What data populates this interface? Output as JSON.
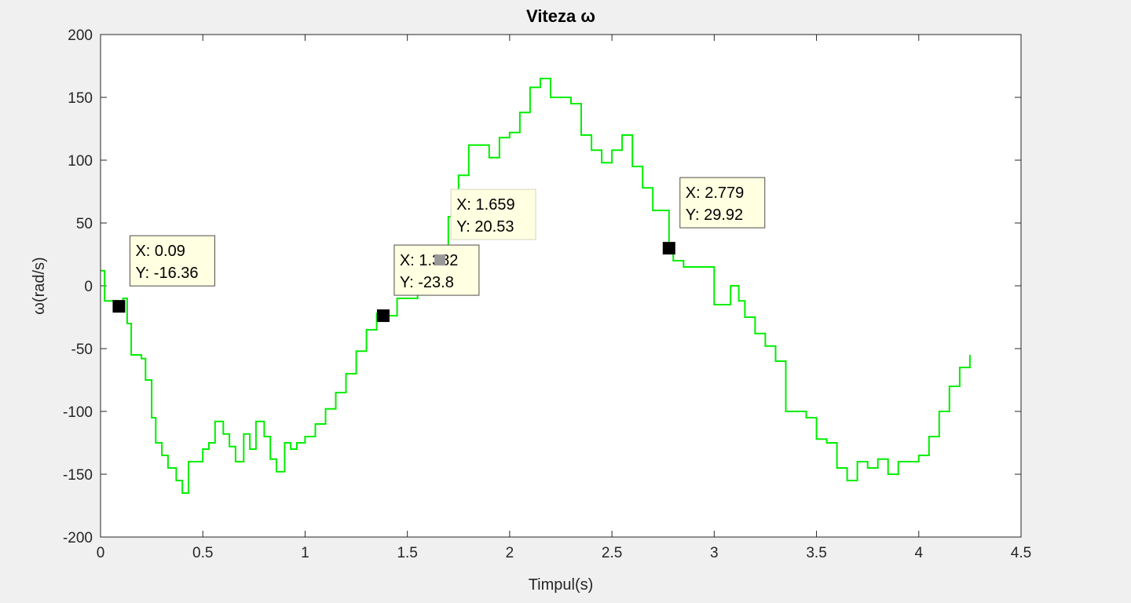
{
  "chart_data": {
    "type": "line",
    "title": "Viteza ω",
    "xlabel": "Timpul(s)",
    "ylabel": "ω(rad/s)",
    "xlim": [
      0,
      4.5
    ],
    "ylim": [
      -200,
      200
    ],
    "xticks": [
      0,
      0.5,
      1,
      1.5,
      2,
      2.5,
      3,
      3.5,
      4,
      4.5
    ],
    "xtick_labels": [
      "0",
      "0.5",
      "1",
      "1.5",
      "2",
      "2.5",
      "3",
      "3.5",
      "4",
      "4.5"
    ],
    "yticks": [
      200,
      150,
      100,
      50,
      0,
      -50,
      -100,
      -150,
      -200
    ],
    "ytick_labels": [
      "200",
      "150",
      "100",
      "50",
      "0",
      "-50",
      "-100",
      "-150",
      "-200"
    ],
    "grid": false,
    "legend": "none",
    "colors": {
      "line": "#00ee00",
      "axes_bg": "#ffffff",
      "figure_bg": "#f0f0f0",
      "tip_bg": "#ffffe1",
      "marker": "#000000",
      "marker_inactive": "#999999"
    },
    "series": [
      {
        "x": [
          0,
          0.02,
          0.05,
          0.09,
          0.11,
          0.13,
          0.15,
          0.2,
          0.22,
          0.25,
          0.27,
          0.3,
          0.33,
          0.37,
          0.4,
          0.43,
          0.46,
          0.5,
          0.53,
          0.56,
          0.6,
          0.63,
          0.66,
          0.7,
          0.73,
          0.76,
          0.8,
          0.83,
          0.86,
          0.9,
          0.93,
          0.96,
          1.0,
          1.05,
          1.1,
          1.15,
          1.2,
          1.25,
          1.3,
          1.35,
          1.38,
          1.45,
          1.55,
          1.659,
          1.7,
          1.75,
          1.8,
          1.85,
          1.9,
          1.95,
          2.0,
          2.05,
          2.1,
          2.15,
          2.2,
          2.25,
          2.3,
          2.35,
          2.4,
          2.45,
          2.5,
          2.55,
          2.6,
          2.65,
          2.7,
          2.779,
          2.8,
          2.85,
          2.9,
          2.95,
          3.0,
          3.05,
          3.08,
          3.12,
          3.15,
          3.2,
          3.25,
          3.3,
          3.35,
          3.4,
          3.45,
          3.5,
          3.55,
          3.6,
          3.65,
          3.7,
          3.75,
          3.8,
          3.85,
          3.9,
          3.95,
          4.0,
          4.05,
          4.1,
          4.15,
          4.2,
          4.25
        ],
        "y": [
          12,
          -12,
          -12,
          -16.36,
          -10,
          -30,
          -55,
          -58,
          -75,
          -105,
          -125,
          -135,
          -145,
          -155,
          -165,
          -140,
          -140,
          -130,
          -125,
          -108,
          -118,
          -128,
          -140,
          -118,
          -130,
          -108,
          -120,
          -138,
          -148,
          -125,
          -130,
          -125,
          -120,
          -110,
          -98,
          -85,
          -70,
          -52,
          -35,
          -22,
          -23.8,
          -10,
          5,
          20.53,
          55,
          88,
          112,
          112,
          102,
          118,
          122,
          138,
          158,
          165,
          150,
          150,
          145,
          120,
          108,
          98,
          108,
          120,
          95,
          78,
          60,
          29.92,
          20,
          15,
          15,
          15,
          -15,
          -15,
          0,
          -12,
          -25,
          -38,
          -48,
          -60,
          -100,
          -100,
          -105,
          -122,
          -125,
          -145,
          -155,
          -140,
          -145,
          -138,
          -150,
          -140,
          -140,
          -135,
          -120,
          -100,
          -80,
          -65,
          -55
        ]
      }
    ],
    "datatips": [
      {
        "x": 0.09,
        "y": -16.36,
        "label_x": "X: 0.09",
        "label_y": "Y: -16.36",
        "active": true
      },
      {
        "x": 1.382,
        "y": -23.8,
        "label_x": "X: 1.382",
        "label_y": "Y: -23.8",
        "active": true
      },
      {
        "x": 1.659,
        "y": 20.53,
        "label_x": "X: 1.659",
        "label_y": "Y: 20.53",
        "active": false
      },
      {
        "x": 2.779,
        "y": 29.92,
        "label_x": "X: 2.779",
        "label_y": "Y: 29.92",
        "active": true
      }
    ]
  }
}
